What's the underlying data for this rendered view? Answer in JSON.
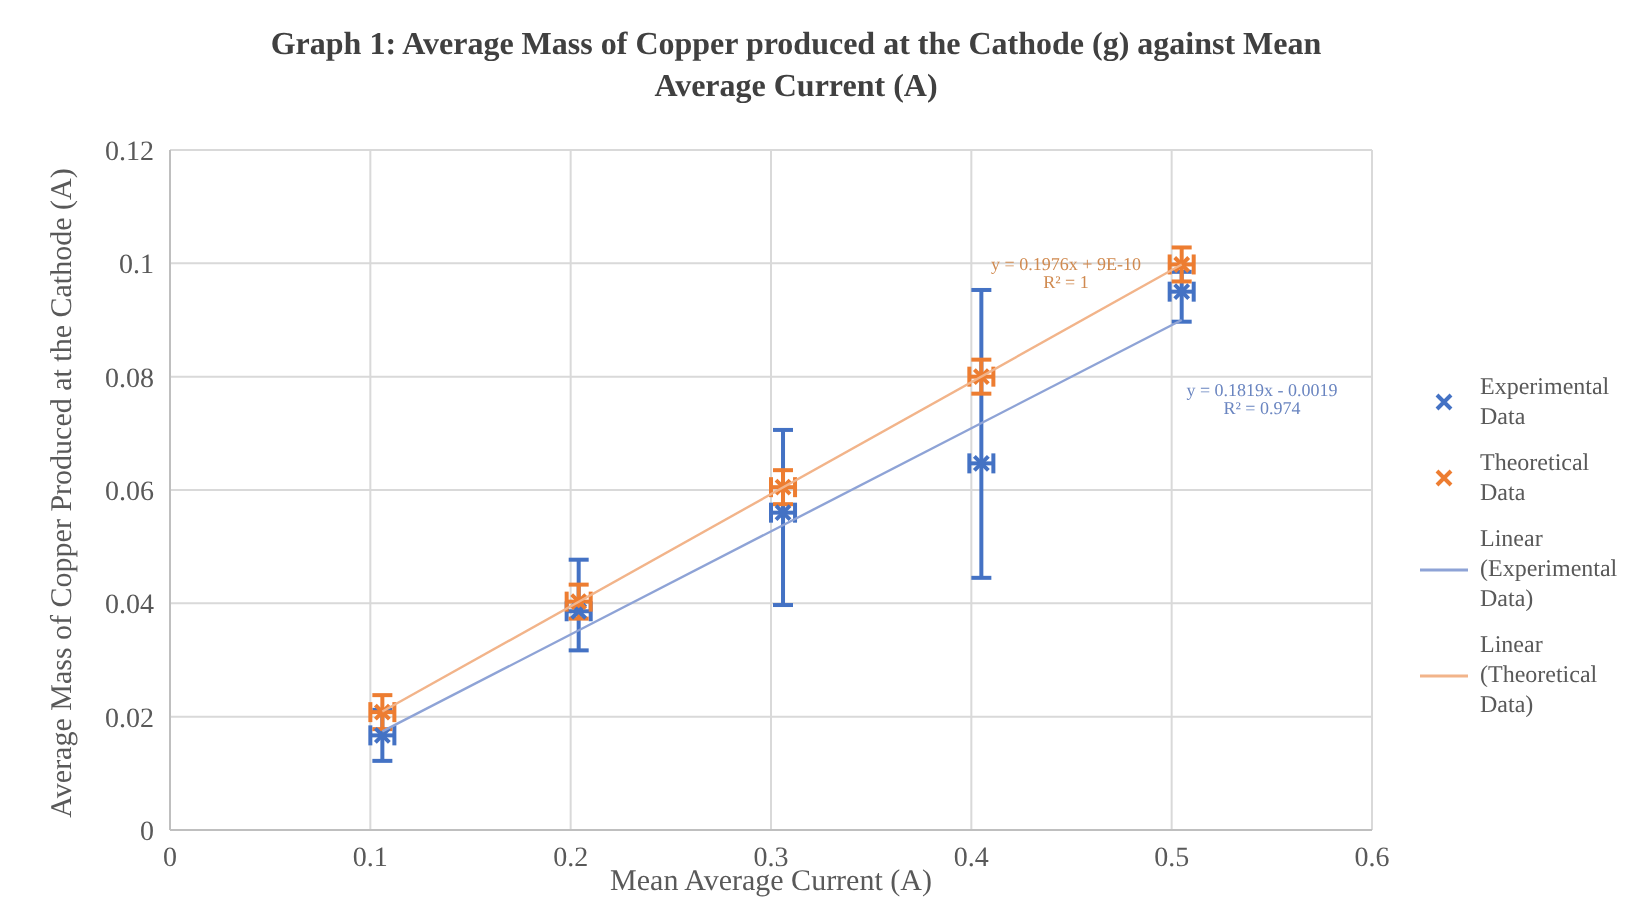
{
  "chart_data": {
    "type": "scatter",
    "title": "Graph 1: Average Mass of Copper produced at the Cathode (g) against Mean Average Current (A)",
    "xlabel": "Mean Average Current (A)",
    "ylabel": "Average Mass of Copper Produced at the Cathode (A)",
    "xlim": [
      0,
      0.6
    ],
    "xticks": [
      0,
      0.1,
      0.2,
      0.3,
      0.4,
      0.5,
      0.6
    ],
    "ylim": [
      0,
      0.12
    ],
    "yticks": [
      0,
      0.02,
      0.04,
      0.06,
      0.08,
      0.1,
      0.12
    ],
    "grid": true,
    "legend": "right",
    "series": [
      {
        "name": "Experimental Data",
        "marker": "cross",
        "color": "#4472c4",
        "x": [
          0.106,
          0.204,
          0.306,
          0.405,
          0.505
        ],
        "values": [
          0.0167,
          0.0386,
          0.056,
          0.0647,
          0.095
        ],
        "errors": [
          [
            0.0122,
            0.0212
          ],
          [
            0.0317,
            0.0477
          ],
          [
            0.0397,
            0.0706
          ],
          [
            0.0445,
            0.0953
          ],
          [
            0.0897,
            0.0985
          ]
        ],
        "xerrors": [
          0.006,
          0.006,
          0.006,
          0.006,
          0.006
        ]
      },
      {
        "name": "Theoretical Data",
        "marker": "cross",
        "color": "#ed7d31",
        "x": [
          0.106,
          0.204,
          0.306,
          0.405,
          0.505
        ],
        "values": [
          0.0208,
          0.0403,
          0.0605,
          0.08,
          0.0998
        ],
        "errors": [
          0.003,
          0.003,
          0.003,
          0.003,
          0.003
        ],
        "xerrors": [
          0.006,
          0.006,
          0.006,
          0.006,
          0.006
        ]
      },
      {
        "name": "Linear (Experimental Data)",
        "type": "line",
        "color": "#8ea3d6",
        "x": [
          0.106,
          0.505
        ],
        "values": [
          0.0174,
          0.09
        ]
      },
      {
        "name": "Linear (Theoretical Data)",
        "type": "line",
        "color": "#f2b48a",
        "x": [
          0.106,
          0.505
        ],
        "values": [
          0.0209,
          0.0998
        ]
      }
    ],
    "annotations": [
      "y = 0.1976x + 9E-10",
      "R² = 1",
      "y = 0.1819x - 0.0019",
      "R² = 0.974"
    ]
  }
}
